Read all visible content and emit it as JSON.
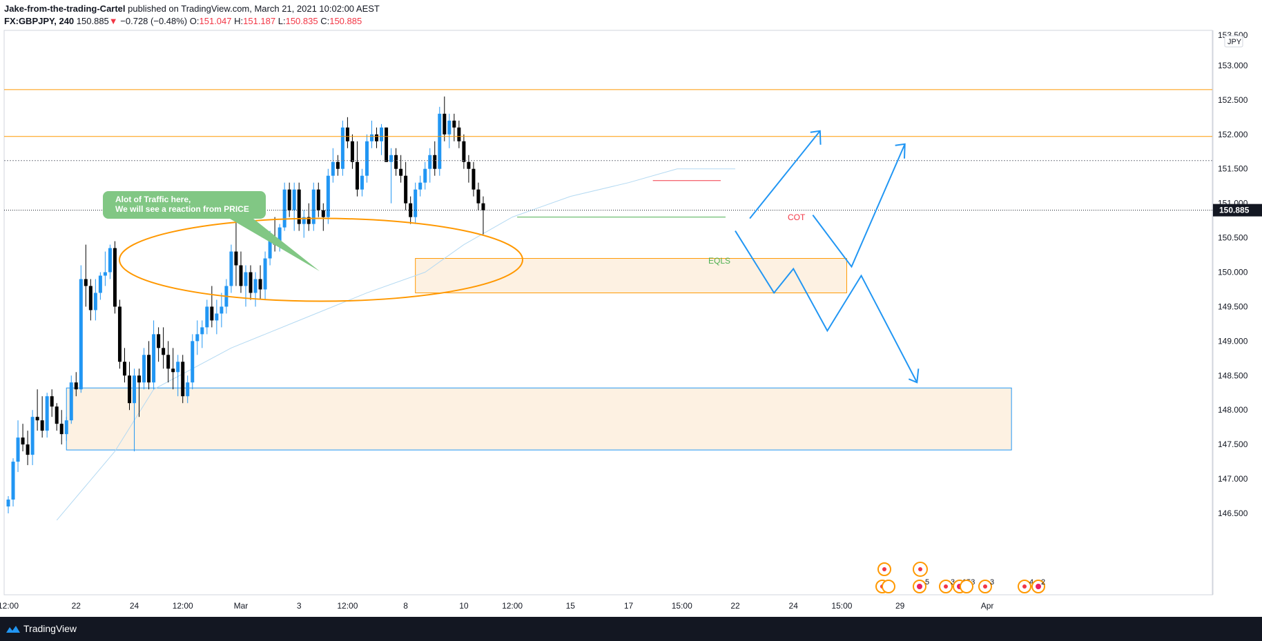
{
  "header": {
    "author": "Jake-from-the-trading-Cartel",
    "published": "published on TradingView.com, March 21, 2021 10:02:00 AEST",
    "symbol": "FX:GBPJPY, 240",
    "last": "150.885",
    "change": "−0.728 (−0.48%)",
    "o_label": "O:",
    "o_value": "151.047",
    "h_label": "H:",
    "h_value": "151.187",
    "l_label": "L:",
    "l_value": "150.835",
    "c_label": "C:",
    "c_value": "150.885"
  },
  "footer": {
    "brand": "TradingView"
  },
  "colors": {
    "up": "#2196f3",
    "down": "#000000",
    "orange": "#ff9800",
    "blue_line": "#2196f3",
    "zone_fill": "#fdf1e2",
    "callout": "#81c784",
    "ma": "#b3d9f2"
  },
  "chart_data": {
    "type": "candlestick",
    "ylim": [
      146.5,
      153.5
    ],
    "y_ticks": [
      "153.000",
      "152.500",
      "152.000",
      "151.500",
      "151.000",
      "150.500",
      "150.000",
      "149.500",
      "149.000",
      "148.500",
      "148.000",
      "147.500",
      "147.000",
      "146.500"
    ],
    "last_price_label": "150.885",
    "top_price_label": "153.500",
    "currency": "JPY",
    "x_ticks": [
      {
        "label": "12:00",
        "bar": 0
      },
      {
        "label": "22",
        "bar": 14
      },
      {
        "label": "24",
        "bar": 26
      },
      {
        "label": "12:00",
        "bar": 36
      },
      {
        "label": "Mar",
        "bar": 48
      },
      {
        "label": "3",
        "bar": 60
      },
      {
        "label": "12:00",
        "bar": 70
      },
      {
        "label": "8",
        "bar": 82
      },
      {
        "label": "10",
        "bar": 94
      },
      {
        "label": "12:00",
        "bar": 104
      },
      {
        "label": "15",
        "bar": 116
      },
      {
        "label": "17",
        "bar": 128
      },
      {
        "label": "15:00",
        "bar": 139
      },
      {
        "label": "22",
        "bar": 150
      },
      {
        "label": "24",
        "bar": 162
      },
      {
        "label": "15:00",
        "bar": 172
      },
      {
        "label": "29",
        "bar": 184
      },
      {
        "label": "Apr",
        "bar": 202
      }
    ],
    "candles": [
      [
        146.6,
        146.75,
        146.5,
        146.7
      ],
      [
        146.7,
        147.3,
        146.6,
        147.25
      ],
      [
        147.25,
        147.85,
        147.1,
        147.6
      ],
      [
        147.6,
        147.8,
        147.4,
        147.5
      ],
      [
        147.5,
        147.7,
        147.2,
        147.35
      ],
      [
        147.35,
        148.0,
        147.2,
        147.9
      ],
      [
        147.9,
        148.3,
        147.7,
        147.85
      ],
      [
        147.85,
        148.2,
        147.6,
        147.7
      ],
      [
        147.7,
        148.25,
        147.6,
        148.2
      ],
      [
        148.2,
        148.3,
        147.9,
        148.05
      ],
      [
        148.05,
        148.1,
        147.7,
        147.8
      ],
      [
        147.8,
        148.0,
        147.5,
        147.65
      ],
      [
        147.65,
        147.9,
        147.55,
        147.85
      ],
      [
        147.85,
        148.5,
        147.8,
        148.4
      ],
      [
        148.4,
        148.55,
        148.2,
        148.3
      ],
      [
        148.3,
        150.1,
        148.25,
        149.9
      ],
      [
        149.9,
        150.4,
        149.5,
        149.8
      ],
      [
        149.8,
        149.9,
        149.3,
        149.45
      ],
      [
        149.45,
        149.9,
        149.3,
        149.7
      ],
      [
        149.7,
        150.0,
        149.6,
        149.95
      ],
      [
        149.95,
        150.3,
        149.8,
        150.0
      ],
      [
        150.0,
        150.4,
        149.9,
        150.35
      ],
      [
        150.35,
        150.45,
        149.4,
        149.5
      ],
      [
        149.5,
        149.6,
        148.6,
        148.7
      ],
      [
        148.7,
        148.9,
        148.4,
        148.5
      ],
      [
        148.5,
        148.7,
        148.0,
        148.1
      ],
      [
        148.1,
        148.6,
        147.4,
        148.5
      ],
      [
        148.5,
        148.6,
        147.9,
        148.4
      ],
      [
        148.4,
        148.9,
        148.3,
        148.8
      ],
      [
        148.8,
        149.0,
        148.3,
        148.4
      ],
      [
        148.4,
        149.3,
        148.3,
        149.1
      ],
      [
        149.1,
        149.2,
        148.7,
        148.9
      ],
      [
        148.9,
        149.2,
        148.6,
        148.8
      ],
      [
        148.8,
        149.0,
        148.4,
        148.6
      ],
      [
        148.6,
        148.9,
        148.3,
        148.55
      ],
      [
        148.55,
        148.8,
        148.2,
        148.7
      ],
      [
        148.7,
        148.8,
        148.1,
        148.2
      ],
      [
        148.2,
        148.5,
        148.1,
        148.4
      ],
      [
        148.4,
        149.1,
        148.3,
        149.0
      ],
      [
        149.0,
        149.3,
        148.8,
        149.1
      ],
      [
        149.1,
        149.3,
        148.9,
        149.2
      ],
      [
        149.2,
        149.6,
        149.1,
        149.5
      ],
      [
        149.5,
        149.8,
        149.2,
        149.3
      ],
      [
        149.3,
        149.6,
        149.1,
        149.4
      ],
      [
        149.4,
        149.7,
        149.2,
        149.5
      ],
      [
        149.5,
        149.9,
        149.4,
        149.8
      ],
      [
        149.8,
        150.4,
        149.7,
        150.3
      ],
      [
        150.3,
        150.75,
        149.8,
        150.1
      ],
      [
        150.1,
        150.3,
        149.7,
        149.8
      ],
      [
        149.8,
        150.1,
        149.5,
        150.0
      ],
      [
        150.0,
        150.1,
        149.6,
        149.7
      ],
      [
        149.7,
        150.0,
        149.5,
        149.9
      ],
      [
        149.9,
        150.1,
        149.6,
        149.75
      ],
      [
        149.75,
        150.3,
        149.6,
        150.2
      ],
      [
        150.2,
        150.6,
        150.1,
        150.5
      ],
      [
        150.5,
        150.8,
        150.3,
        150.4
      ],
      [
        150.4,
        150.7,
        150.3,
        150.65
      ],
      [
        150.65,
        151.3,
        150.6,
        151.2
      ],
      [
        151.2,
        151.3,
        150.8,
        150.9
      ],
      [
        150.9,
        151.3,
        150.6,
        151.2
      ],
      [
        151.2,
        151.3,
        150.6,
        150.7
      ],
      [
        150.7,
        150.9,
        150.5,
        150.8
      ],
      [
        150.8,
        151.0,
        150.6,
        150.7
      ],
      [
        150.7,
        151.3,
        150.6,
        151.2
      ],
      [
        151.2,
        151.3,
        150.8,
        150.9
      ],
      [
        150.9,
        151.0,
        150.6,
        150.8
      ],
      [
        150.8,
        151.5,
        150.7,
        151.4
      ],
      [
        151.4,
        151.8,
        151.3,
        151.6
      ],
      [
        151.6,
        151.7,
        151.4,
        151.5
      ],
      [
        151.5,
        152.2,
        151.4,
        152.1
      ],
      [
        152.1,
        152.25,
        151.8,
        151.9
      ],
      [
        151.9,
        152.0,
        151.5,
        151.6
      ],
      [
        151.6,
        151.9,
        151.1,
        151.2
      ],
      [
        151.2,
        151.5,
        151.1,
        151.4
      ],
      [
        151.4,
        152.0,
        151.3,
        151.9
      ],
      [
        151.9,
        152.2,
        151.8,
        152.0
      ],
      [
        152.0,
        152.1,
        151.8,
        151.9
      ],
      [
        151.9,
        152.15,
        151.7,
        152.1
      ],
      [
        152.1,
        152.1,
        151.6,
        151.6
      ],
      [
        151.6,
        151.8,
        151.0,
        151.7
      ],
      [
        151.7,
        151.8,
        151.4,
        151.5
      ],
      [
        151.5,
        151.7,
        151.3,
        151.4
      ],
      [
        151.4,
        151.6,
        150.9,
        151.0
      ],
      [
        151.0,
        151.1,
        150.7,
        150.8
      ],
      [
        150.8,
        151.3,
        150.7,
        151.2
      ],
      [
        151.2,
        151.4,
        151.1,
        151.3
      ],
      [
        151.3,
        151.6,
        151.2,
        151.5
      ],
      [
        151.5,
        151.8,
        151.3,
        151.7
      ],
      [
        151.7,
        151.9,
        151.4,
        151.5
      ],
      [
        151.5,
        152.4,
        151.4,
        152.3
      ],
      [
        152.3,
        152.55,
        151.9,
        152.0
      ],
      [
        152.0,
        152.3,
        151.8,
        152.2
      ],
      [
        152.2,
        152.3,
        151.9,
        152.1
      ],
      [
        152.1,
        152.2,
        151.8,
        151.9
      ],
      [
        151.9,
        152.0,
        151.5,
        151.6
      ],
      [
        151.6,
        151.7,
        151.3,
        151.5
      ],
      [
        151.5,
        151.6,
        151.1,
        151.2
      ],
      [
        151.2,
        151.3,
        150.9,
        151.0
      ],
      [
        151.0,
        151.1,
        150.55,
        150.9
      ]
    ],
    "ma_points": [
      [
        10,
        146.4
      ],
      [
        22,
        147.4
      ],
      [
        30,
        148.3
      ],
      [
        46,
        148.9
      ],
      [
        60,
        149.3
      ],
      [
        74,
        149.7
      ],
      [
        86,
        150.0
      ],
      [
        94,
        150.4
      ],
      [
        104,
        150.8
      ],
      [
        116,
        151.1
      ],
      [
        128,
        151.3
      ],
      [
        138,
        151.5
      ],
      [
        150,
        151.5
      ]
    ],
    "levels": [
      152.65,
      151.97,
      151.62
    ],
    "zones": [
      {
        "from_bar": 84,
        "to_bar": 173,
        "low": 149.7,
        "high": 150.2
      },
      {
        "from_bar": 12,
        "to_bar": 207,
        "low": 147.42,
        "high": 148.32
      }
    ],
    "annotations": {
      "callout_line1": "Alot of Traffic here,",
      "callout_line2": "We will see a reaction from PRICE",
      "eqls": "EQLS",
      "cot": "COT"
    },
    "event_markers": {
      "counts": [
        "5",
        "3",
        "153",
        "3",
        "4",
        "2"
      ]
    }
  }
}
